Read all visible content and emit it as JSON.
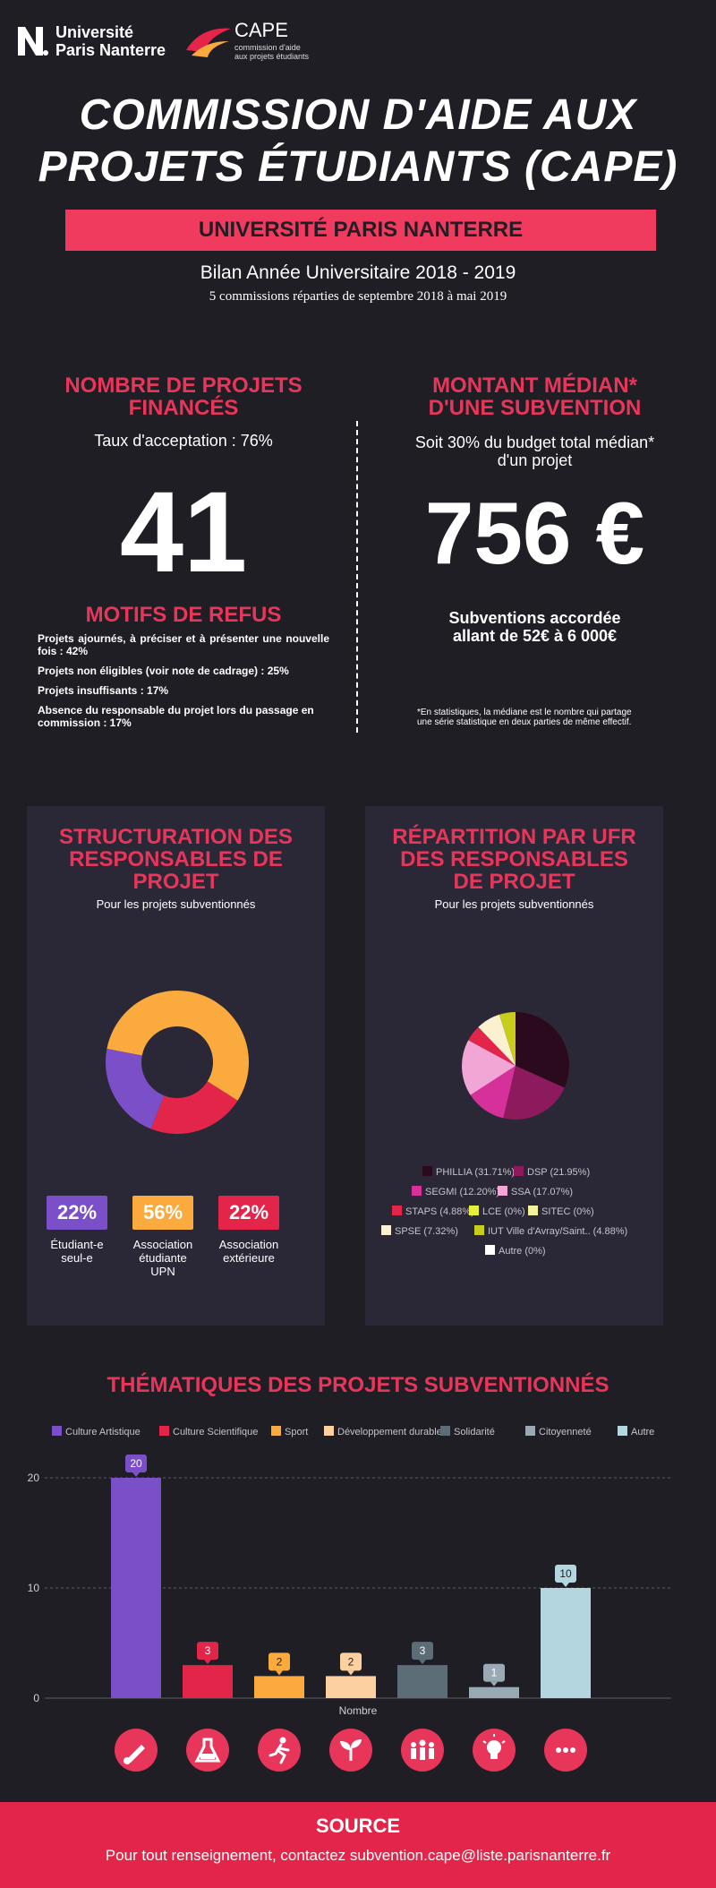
{
  "header": {
    "univ_line1": "Université",
    "univ_line2": "Paris Nanterre",
    "cape_title": "CAPE",
    "cape_sub1": "commission d'aide",
    "cape_sub2": "aux projets étudiants"
  },
  "title_line1": "COMMISSION D'AIDE AUX",
  "title_line2": "PROJETS ÉTUDIANTS (CAPE)",
  "band": "UNIVERSITÉ PARIS NANTERRE",
  "subtitle": "Bilan Année Universitaire 2018 - 2019",
  "subsubtitle": "5 commissions réparties de septembre 2018 à mai 2019",
  "left": {
    "heading1": "NOMBRE DE PROJETS",
    "heading2": "FINANCÉS",
    "rate": "Taux d'acceptation : 76%",
    "count": "41",
    "refus_heading": "MOTIFS DE REFUS",
    "refus": [
      "Projets ajournés, à préciser et à présenter une nouvelle fois : 42%",
      "Projets non éligibles (voir note de cadrage)  : 25%",
      "Projets insuffisants  : 17%",
      "Absence du responsable du projet lors du passage en commission  : 17%"
    ]
  },
  "right": {
    "heading1": "MONTANT MÉDIAN*",
    "heading2": "D'UNE SUBVENTION",
    "budget1": "Soit 30% du budget total médian*",
    "budget2": "d'un projet",
    "amount": "756 €",
    "range1": "Subventions accordée",
    "range2": "allant de 52€ à 6 000€",
    "note1": "*En statistiques, la médiane est le nombre qui partage",
    "note2": "une série statistique en deux parties de même effectif."
  },
  "panel_struct": {
    "heading1": "STRUCTURATION DES",
    "heading2": "RESPONSABLES DE",
    "heading3": "PROJET",
    "sub": "Pour les projets subventionnés",
    "badges": [
      {
        "value": "22%",
        "label1": "Étudiant-e",
        "label2": "seul-e",
        "label3": "",
        "color": "#7b4fc7"
      },
      {
        "value": "56%",
        "label1": "Association",
        "label2": "étudiante",
        "label3": "UPN",
        "color": "#fbaa3e"
      },
      {
        "value": "22%",
        "label1": "Association",
        "label2": "extérieure",
        "label3": "",
        "color": "#e3254a"
      }
    ]
  },
  "panel_ufr": {
    "heading1": "RÉPARTITION PAR UFR",
    "heading2": "DES RESPONSABLES",
    "heading3": "DE PROJET",
    "sub": "Pour les projets subventionnés"
  },
  "themes_heading": "THÉMATIQUES DES PROJETS SUBVENTIONNÉS",
  "footer": {
    "title": "SOURCE",
    "text": "Pour tout renseignement, contactez subvention.cape@liste.parisnanterre.fr"
  },
  "icons": [
    "brush-icon",
    "flask-icon",
    "runner-icon",
    "sprout-icon",
    "people-icon",
    "lightbulb-icon",
    "more-icon"
  ],
  "chart_data": [
    {
      "type": "pie",
      "categories": [
        "Étudiant-e seul-e",
        "Association étudiante UPN",
        "Association extérieure"
      ],
      "values": [
        22,
        56,
        22
      ],
      "colors": [
        "#7b4fc7",
        "#fbaa3e",
        "#e3254a"
      ]
    },
    {
      "type": "pie",
      "categories": [
        "PHILLIA (31.71%)",
        "DSP (21.95%)",
        "SEGMI (12.20%)",
        "SSA (17.07%)",
        "STAPS (4.88%)",
        "LCE (0%)",
        "SITEC (0%)",
        "SPSE (7.32%)",
        "IUT Ville d'Avray/Saint.. (4.88%)",
        "Autre (0%)"
      ],
      "values": [
        31.71,
        21.95,
        12.2,
        17.07,
        4.88,
        0,
        0,
        7.32,
        4.88,
        0
      ],
      "colors": [
        "#2c0a1e",
        "#8c1a5c",
        "#d6309a",
        "#f2a6d6",
        "#e3254a",
        "#e6f03c",
        "#f4f29a",
        "#fbf0d0",
        "#c8cc1a",
        "#ffffff"
      ],
      "legend": "bottom"
    },
    {
      "type": "bar",
      "categories": [
        "Culture Artistique",
        "Culture Scientifique",
        "Sport",
        "Développement durable",
        "Solidarité",
        "Citoyenneté",
        "Autre"
      ],
      "values": [
        20,
        3,
        2,
        2,
        3,
        1,
        10
      ],
      "colors": [
        "#7b4fc7",
        "#e3254a",
        "#fbaa3e",
        "#fcd09f",
        "#5d6d78",
        "#9aaab4",
        "#b4d6de"
      ],
      "xlabel": "Nombre",
      "ylim": [
        0,
        20
      ],
      "yticks": [
        0,
        10,
        20
      ],
      "legend": "top"
    }
  ]
}
